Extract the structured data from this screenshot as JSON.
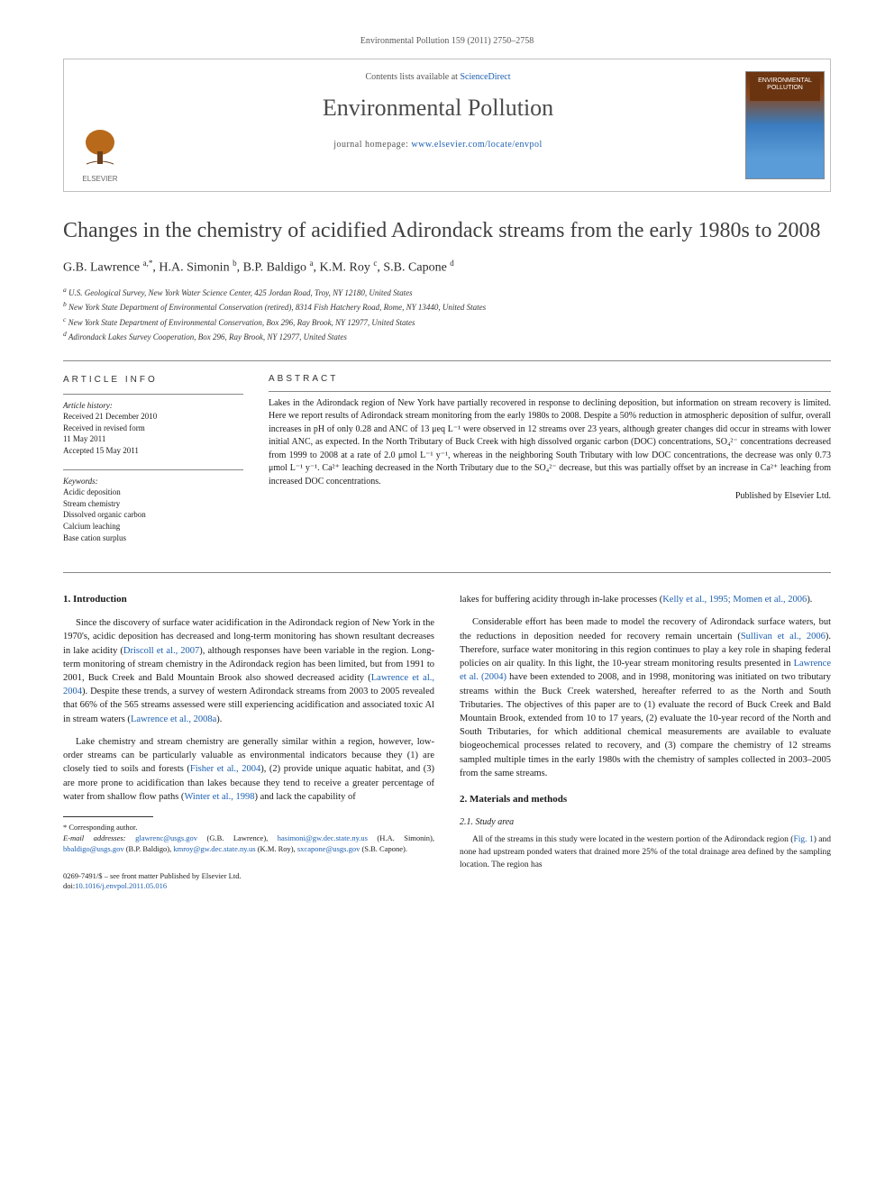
{
  "citation": "Environmental Pollution 159 (2011) 2750–2758",
  "header": {
    "contents_prefix": "Contents lists available at ",
    "contents_link": "ScienceDirect",
    "journal": "Environmental Pollution",
    "homepage_prefix": "journal homepage: ",
    "homepage_url": "www.elsevier.com/locate/envpol",
    "publisher": "ELSEVIER",
    "cover_label": "ENVIRONMENTAL POLLUTION"
  },
  "title": "Changes in the chemistry of acidified Adirondack streams from the early 1980s to 2008",
  "authors_html": "G.B. Lawrence <sup>a,*</sup>, H.A. Simonin <sup>b</sup>, B.P. Baldigo <sup>a</sup>, K.M. Roy <sup>c</sup>, S.B. Capone <sup>d</sup>",
  "affiliations": [
    "a U.S. Geological Survey, New York Water Science Center, 425 Jordan Road, Troy, NY 12180, United States",
    "b New York State Department of Environmental Conservation (retired), 8314 Fish Hatchery Road, Rome, NY 13440, United States",
    "c New York State Department of Environmental Conservation, Box 296, Ray Brook, NY 12977, United States",
    "d Adirondack Lakes Survey Cooperation, Box 296, Ray Brook, NY 12977, United States"
  ],
  "info": {
    "header": "ARTICLE INFO",
    "history_label": "Article history:",
    "received": "Received 21 December 2010",
    "revised1": "Received in revised form",
    "revised2": "11 May 2011",
    "accepted": "Accepted 15 May 2011",
    "keywords_label": "Keywords:",
    "keywords": [
      "Acidic deposition",
      "Stream chemistry",
      "Dissolved organic carbon",
      "Calcium leaching",
      "Base cation surplus"
    ]
  },
  "abstract": {
    "header": "ABSTRACT",
    "text": "Lakes in the Adirondack region of New York have partially recovered in response to declining deposition, but information on stream recovery is limited. Here we report results of Adirondack stream monitoring from the early 1980s to 2008. Despite a 50% reduction in atmospheric deposition of sulfur, overall increases in pH of only 0.28 and ANC of 13 μeq L⁻¹ were observed in 12 streams over 23 years, although greater changes did occur in streams with lower initial ANC, as expected. In the North Tributary of Buck Creek with high dissolved organic carbon (DOC) concentrations, SO₄²⁻ concentrations decreased from 1999 to 2008 at a rate of 2.0 μmol L⁻¹ y⁻¹, whereas in the neighboring South Tributary with low DOC concentrations, the decrease was only 0.73 μmol L⁻¹ y⁻¹. Ca²⁺ leaching decreased in the North Tributary due to the SO₄²⁻ decrease, but this was partially offset by an increase in Ca²⁺ leaching from increased DOC concentrations.",
    "publisher": "Published by Elsevier Ltd."
  },
  "sections": {
    "intro_heading": "1. Introduction",
    "methods_heading": "2. Materials and methods",
    "study_area_heading": "2.1. Study area"
  },
  "body": {
    "left": {
      "p1_a": "Since the discovery of surface water acidification in the Adirondack region of New York in the 1970's, acidic deposition has decreased and long-term monitoring has shown resultant decreases in lake acidity (",
      "p1_ref1": "Driscoll et al., 2007",
      "p1_b": "), although responses have been variable in the region. Long-term monitoring of stream chemistry in the Adirondack region has been limited, but from 1991 to 2001, Buck Creek and Bald Mountain Brook also showed decreased acidity (",
      "p1_ref2": "Lawrence et al., 2004",
      "p1_c": "). Despite these trends, a survey of western Adirondack streams from 2003 to 2005 revealed that 66% of the 565 streams assessed were still experiencing acidification and associated toxic Al in stream waters (",
      "p1_ref3": "Lawrence et al., 2008a",
      "p1_d": ").",
      "p2_a": "Lake chemistry and stream chemistry are generally similar within a region, however, low-order streams can be particularly valuable as environmental indicators because they (1) are closely tied to soils and forests (",
      "p2_ref1": "Fisher et al., 2004",
      "p2_b": "), (2) provide unique aquatic habitat, and (3) are more prone to acidification than lakes because they tend to receive a greater percentage of water from shallow flow paths (",
      "p2_ref2": "Winter et al., 1998",
      "p2_c": ") and lack the capability of"
    },
    "right": {
      "p1_a": "lakes for buffering acidity through in-lake processes (",
      "p1_ref1": "Kelly et al., 1995; Momen et al., 2006",
      "p1_b": ").",
      "p2_a": "Considerable effort has been made to model the recovery of Adirondack surface waters, but the reductions in deposition needed for recovery remain uncertain (",
      "p2_ref1": "Sullivan et al., 2006",
      "p2_b": "). Therefore, surface water monitoring in this region continues to play a key role in shaping federal policies on air quality. In this light, the 10-year stream monitoring results presented in ",
      "p2_ref2": "Lawrence et al. (2004)",
      "p2_c": " have been extended to 2008, and in 1998, monitoring was initiated on two tributary streams within the Buck Creek watershed, hereafter referred to as the North and South Tributaries. The objectives of this paper are to (1) evaluate the record of Buck Creek and Bald Mountain Brook, extended from 10 to 17 years, (2) evaluate the 10-year record of the North and South Tributaries, for which additional chemical measurements are available to evaluate biogeochemical processes related to recovery, and (3) compare the chemistry of 12 streams sampled multiple times in the early 1980s with the chemistry of samples collected in 2003–2005 from the same streams.",
      "p3_a": "All of the streams in this study were located in the western portion of the Adirondack region (",
      "p3_ref1": "Fig. 1",
      "p3_b": ") and none had upstream ponded waters that drained more 25% of the total drainage area defined by the sampling location. The region has"
    }
  },
  "footnotes": {
    "corr": "* Corresponding author.",
    "emails_label": "E-mail addresses: ",
    "emails": [
      {
        "addr": "glawrenc@usgs.gov",
        "who": " (G.B. Lawrence), "
      },
      {
        "addr": "hasimoni@gw.dec.state.ny.us",
        "who": " (H.A. Simonin), "
      },
      {
        "addr": "bbaldigo@usgs.gov",
        "who": " (B.P. Baldigo), "
      },
      {
        "addr": "kmroy@gw.dec.state.ny.us",
        "who": " (K.M. Roy), "
      },
      {
        "addr": "sxcapone@usgs.gov",
        "who": " (S.B. Capone)."
      }
    ]
  },
  "footer": {
    "issn": "0269-7491/$ – see front matter Published by Elsevier Ltd.",
    "doi_label": "doi:",
    "doi": "10.1016/j.envpol.2011.05.016"
  },
  "colors": {
    "link": "#1c5fb0",
    "text": "#1a1a1a",
    "title_gray": "#404040",
    "border": "#c0c0c0"
  }
}
